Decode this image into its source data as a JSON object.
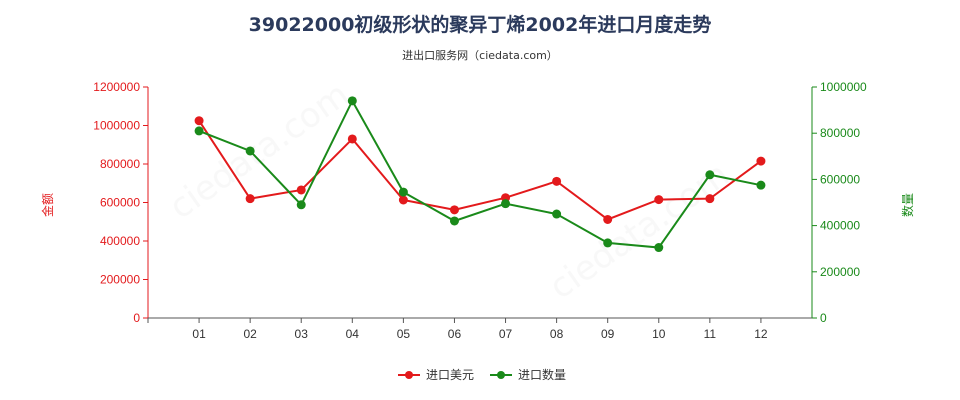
{
  "chart_data": {
    "type": "line",
    "title": "39022000初级形状的聚异丁烯2002年进口月度走势",
    "subtitle": "进出口服务网（ciedata.com）",
    "categories": [
      "01",
      "02",
      "03",
      "04",
      "05",
      "06",
      "07",
      "08",
      "09",
      "10",
      "11",
      "12"
    ],
    "left_axis": {
      "label": "金额",
      "ylim": [
        0,
        1200000
      ],
      "ticks": [
        "0",
        "200000",
        "400000",
        "600000",
        "800000",
        "1000000",
        "1200000"
      ],
      "color": "#e31a1c"
    },
    "right_axis": {
      "label": "数量",
      "ylim": [
        0,
        1000000
      ],
      "ticks": [
        "0",
        "200000",
        "400000",
        "600000",
        "800000",
        "1000000"
      ],
      "color": "#1a8a1a"
    },
    "series": [
      {
        "name": "进口美元",
        "axis": "left",
        "color": "#e31a1c",
        "values": [
          1025000,
          620000,
          665000,
          930000,
          613000,
          562000,
          625000,
          710000,
          512000,
          615000,
          620000,
          815000
        ]
      },
      {
        "name": "进口数量",
        "axis": "right",
        "color": "#1a8a1a",
        "values": [
          810000,
          723000,
          490000,
          940000,
          545000,
          420000,
          495000,
          450000,
          325000,
          305000,
          620000,
          575000
        ]
      }
    ],
    "grid": false,
    "legend_position": "bottom-center"
  }
}
